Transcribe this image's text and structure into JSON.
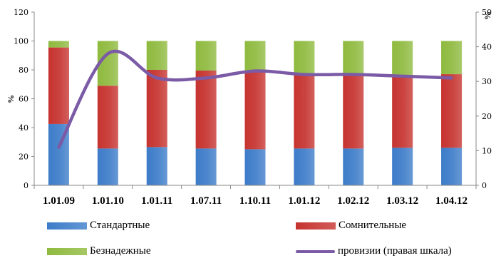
{
  "chart_data": {
    "type": "bar",
    "stacked": true,
    "categories": [
      "1.01.09",
      "1.01.10",
      "1.01.11",
      "1.07.11",
      "1.10.11",
      "1.01.12",
      "1.02.12",
      "1.03.12",
      "1.04.12"
    ],
    "series": [
      {
        "name": "Стандартные",
        "values": [
          42.5,
          25.5,
          26.5,
          25.5,
          25,
          25.5,
          25.5,
          26,
          26
        ],
        "color": "#3d7cc9",
        "axis": "left"
      },
      {
        "name": "Сомнительные",
        "values": [
          53,
          43.5,
          53.5,
          54,
          53.5,
          52,
          51.5,
          50.5,
          51
        ],
        "color": "#c6332f",
        "axis": "left"
      },
      {
        "name": "Безнадежные",
        "values": [
          4.5,
          31,
          20,
          20.5,
          21.5,
          22.5,
          23,
          23.5,
          23
        ],
        "color": "#8fba3f",
        "axis": "left"
      },
      {
        "name": "провизии (правая шкала)",
        "type": "line",
        "values": [
          11,
          38,
          31,
          31,
          33,
          32,
          32,
          31.5,
          31
        ],
        "color": "#7b5aa6",
        "axis": "right"
      }
    ],
    "left_axis": {
      "min": 0,
      "max": 120,
      "step": 20,
      "label": "%"
    },
    "right_axis": {
      "min": 0,
      "max": 50,
      "step": 10,
      "label": "%"
    },
    "grid": false,
    "legend": "bottom"
  }
}
